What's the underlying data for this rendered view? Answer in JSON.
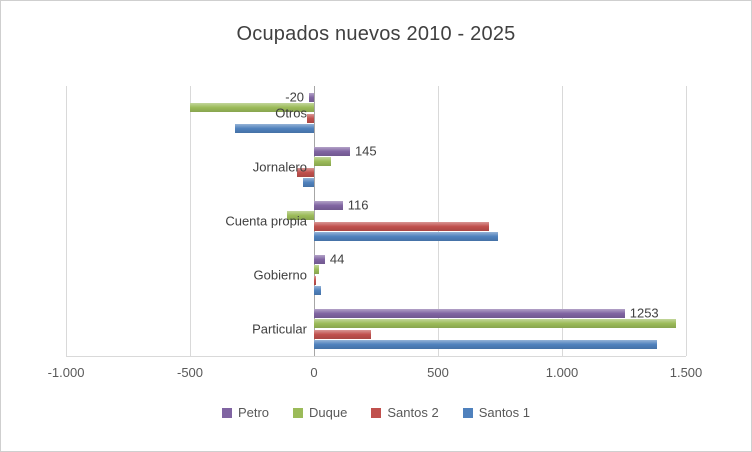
{
  "colors": {
    "title_text": "#404040",
    "axis_text": "#595959",
    "gridline": "#d9d9d9",
    "zero_line": "#a6a6a6",
    "frame_border": "#cfcfcf"
  },
  "chart_data": {
    "type": "bar",
    "orientation": "horizontal",
    "title": "Ocupados nuevos 2010 - 2025",
    "categories": [
      "Otros",
      "Jornalero",
      "Cuenta propia",
      "Gobierno",
      "Particular"
    ],
    "categories_order": "top-to-bottom",
    "series": [
      {
        "name": "Petro",
        "color": "#8064A2",
        "values": [
          -20,
          145,
          116,
          44,
          1253
        ]
      },
      {
        "name": "Duque",
        "color": "#9BBB59",
        "values": [
          -500,
          70,
          -110,
          22,
          1460
        ]
      },
      {
        "name": "Santos 2",
        "color": "#C0504D",
        "values": [
          -30,
          -70,
          705,
          10,
          230
        ]
      },
      {
        "name": "Santos 1",
        "color": "#4F81BD",
        "values": [
          -320,
          -45,
          740,
          28,
          1385
        ]
      }
    ],
    "data_labels": {
      "series_index": 0,
      "series_name": "Petro",
      "texts": [
        "-20",
        "145",
        "116",
        "44",
        "1253"
      ]
    },
    "xlim": [
      -1000,
      1500
    ],
    "xticks": [
      {
        "value": -1000,
        "label": "-1.000"
      },
      {
        "value": -500,
        "label": "-500"
      },
      {
        "value": 0,
        "label": "0"
      },
      {
        "value": 500,
        "label": "500"
      },
      {
        "value": 1000,
        "label": "1.000"
      },
      {
        "value": 1500,
        "label": "1.500"
      }
    ],
    "grid": true,
    "legend_position": "bottom",
    "legend": [
      "Petro",
      "Duque",
      "Santos 2",
      "Santos 1"
    ]
  }
}
